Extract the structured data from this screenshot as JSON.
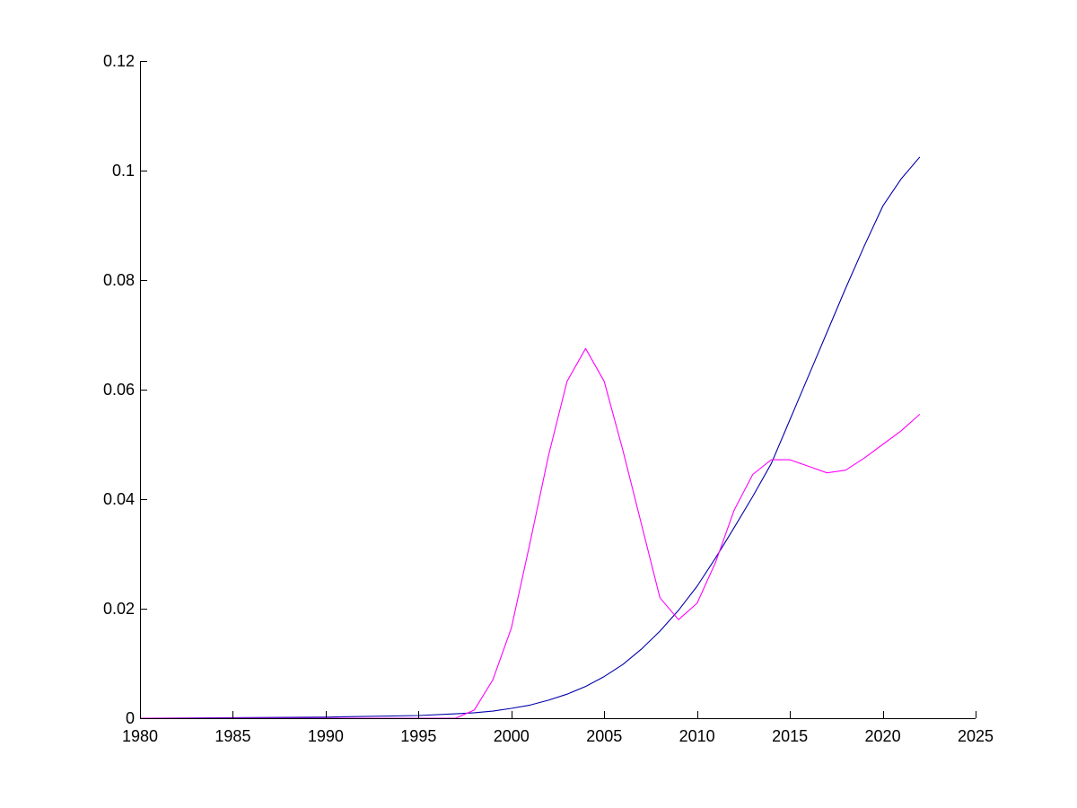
{
  "chart_data": {
    "type": "line",
    "title": "",
    "xlabel": "",
    "ylabel": "",
    "xlim": [
      1980,
      2025
    ],
    "ylim": [
      0,
      0.12
    ],
    "grid": false,
    "x_ticks": [
      "1980",
      "1985",
      "1990",
      "1995",
      "2000",
      "2005",
      "2010",
      "2015",
      "2020",
      "2025"
    ],
    "y_ticks": [
      "0",
      "0.02",
      "0.04",
      "0.06",
      "0.08",
      "0.1",
      "0.12"
    ],
    "x_tick_values": [
      1980,
      1985,
      1990,
      1995,
      2000,
      2005,
      2010,
      2015,
      2020,
      2025
    ],
    "y_tick_values": [
      0,
      0.02,
      0.04,
      0.06,
      0.08,
      0.1,
      0.12
    ],
    "series": [
      {
        "color": "#0000aa",
        "x": [
          1980,
          1985,
          1990,
          1995,
          1997,
          1998,
          1999,
          2000,
          2001,
          2002,
          2003,
          2004,
          2005,
          2006,
          2007,
          2008,
          2009,
          2010,
          2011,
          2012,
          2013,
          2014,
          2015,
          2016,
          2017,
          2018,
          2019,
          2020,
          2021,
          2022
        ],
        "y": [
          0,
          0.0001,
          0.0002,
          0.0005,
          0.0008,
          0.001,
          0.0013,
          0.0018,
          0.0024,
          0.0033,
          0.0044,
          0.0058,
          0.0076,
          0.0098,
          0.0126,
          0.0159,
          0.0197,
          0.0241,
          0.0293,
          0.0348,
          0.0405,
          0.0465,
          0.0545,
          0.0625,
          0.0705,
          0.0785,
          0.0862,
          0.0935,
          0.0985,
          0.1025
        ]
      },
      {
        "color": "#ff00ff",
        "x": [
          1980,
          1997,
          1998,
          1999,
          2000,
          2001,
          2002,
          2003,
          2004,
          2005,
          2006,
          2007,
          2008,
          2009,
          2010,
          2011,
          2012,
          2013,
          2014,
          2015,
          2016,
          2017,
          2018,
          2019,
          2020,
          2021,
          2022
        ],
        "y": [
          0,
          0,
          0.0015,
          0.007,
          0.0165,
          0.032,
          0.048,
          0.0615,
          0.0675,
          0.0615,
          0.049,
          0.0355,
          0.022,
          0.018,
          0.021,
          0.0285,
          0.038,
          0.0445,
          0.0472,
          0.0472,
          0.046,
          0.0448,
          0.0453,
          0.0475,
          0.05,
          0.0525,
          0.0555
        ]
      }
    ]
  }
}
